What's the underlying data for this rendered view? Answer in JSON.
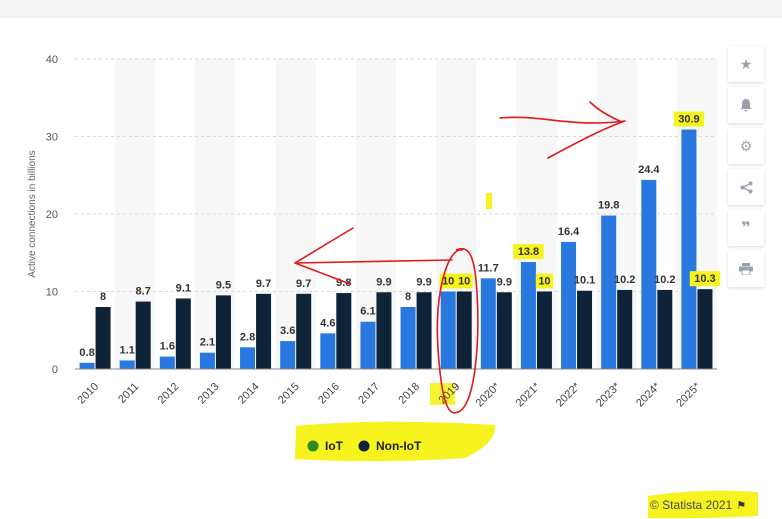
{
  "toolbar": {
    "icons": [
      "star-icon",
      "bell-icon",
      "gear-icon",
      "share-icon",
      "quote-icon",
      "print-icon"
    ]
  },
  "chart_data": {
    "type": "bar",
    "ylabel": "Active connections in billions",
    "ylim": [
      0,
      40
    ],
    "yticks": [
      0,
      10,
      20,
      30,
      40
    ],
    "grid": true,
    "legend_position": "bottom",
    "categories": [
      "2010",
      "2011",
      "2012",
      "2013",
      "2014",
      "2015",
      "2016",
      "2017",
      "2018",
      "2019",
      "2020*",
      "2021*",
      "2022*",
      "2023*",
      "2024*",
      "2025*"
    ],
    "series": [
      {
        "name": "IoT",
        "color": "#2878e0",
        "legend_color": "#2e8b1e",
        "values": [
          0.8,
          1.1,
          1.6,
          2.1,
          2.8,
          3.6,
          4.6,
          6.1,
          8,
          10,
          11.7,
          13.8,
          16.4,
          19.8,
          24.4,
          30.9
        ],
        "labels": [
          "0.8",
          "1.1",
          "1.6",
          "2.1",
          "2.8",
          "3.6",
          "4.6",
          "6.1",
          "8",
          "10",
          "11.7",
          "13.8",
          "16.4",
          "19.8",
          "24.4",
          "30.9"
        ]
      },
      {
        "name": "Non-IoT",
        "color": "#0e2238",
        "legend_color": "#0e2238",
        "values": [
          8,
          8.7,
          9.1,
          9.5,
          9.7,
          9.7,
          9.8,
          9.9,
          9.9,
          10,
          9.9,
          10,
          10.1,
          10.2,
          10.2,
          10.3
        ],
        "labels": [
          "8",
          "8.7",
          "9.1",
          "9.5",
          "9.7",
          "9.7",
          "9.8",
          "9.9",
          "9.9",
          "10",
          "9.9",
          "10",
          "10.1",
          "10.2",
          "10.2",
          "10.3"
        ]
      }
    ],
    "highlight_color": "#f7f31e",
    "highlighted_labels": [
      "IoT:10",
      "Non-IoT:10",
      "IoT:13.8",
      "Non-IoT:10",
      "IoT:30.9",
      "Non-IoT:10.3"
    ],
    "annotation_color": "#e01b1b"
  },
  "credit": "© Statista 2021"
}
